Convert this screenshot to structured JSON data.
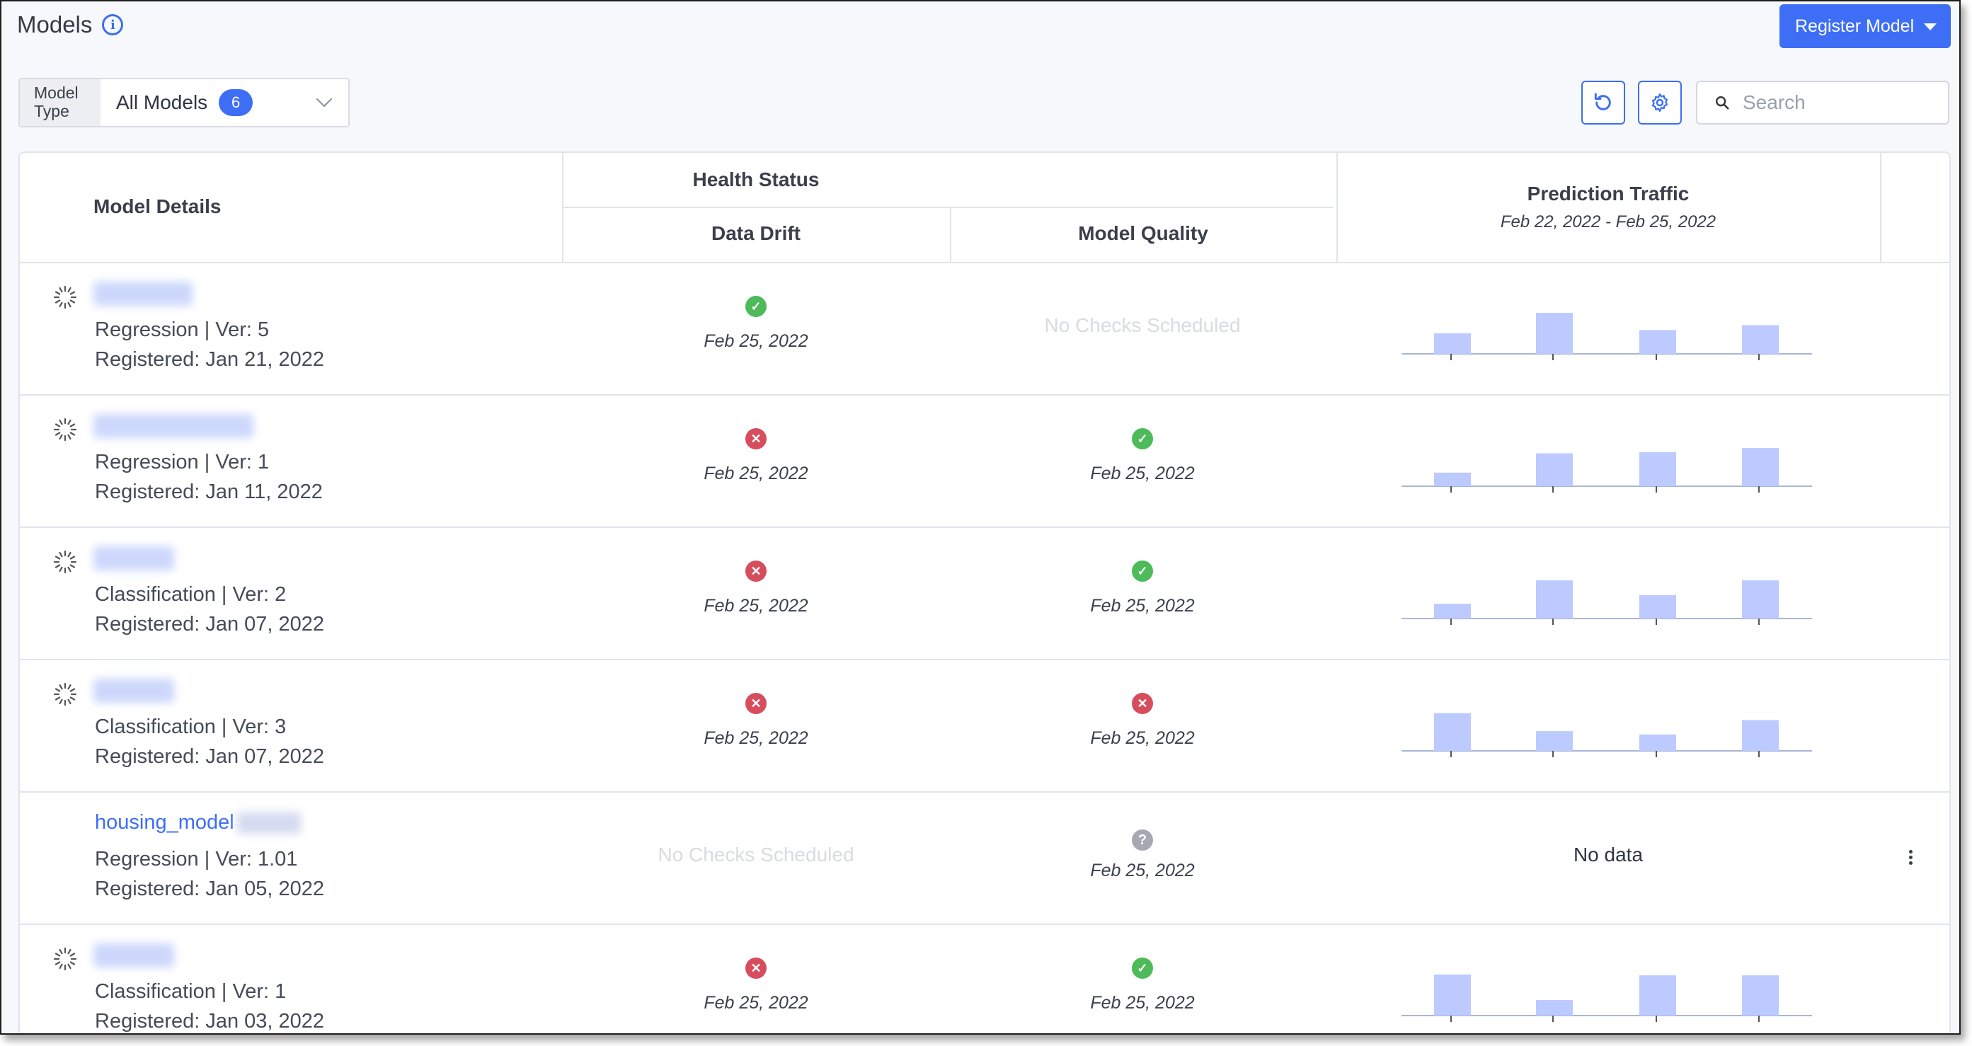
{
  "page": {
    "title": "Models",
    "register_button": "Register Model",
    "model_type": {
      "label_line1": "Model",
      "label_line2": "Type",
      "value": "All Models",
      "count": "6"
    },
    "search_placeholder": "Search"
  },
  "table": {
    "headers": {
      "model_details": "Model Details",
      "health_status": "Health Status",
      "data_drift": "Data Drift",
      "model_quality": "Model Quality",
      "prediction_traffic": "Prediction Traffic",
      "date_range": "Feb 22, 2022 - Feb 25, 2022"
    },
    "rows": [
      {
        "name_visible": false,
        "meta": "Regression | Ver: 5",
        "registered": "Registered: Jan 21, 2022",
        "drift": {
          "status": "ok",
          "date": "Feb 25, 2022"
        },
        "quality": {
          "status": "none",
          "text": "No Checks Scheduled"
        },
        "traffic": [
          0.5,
          1.0,
          0.58,
          0.7
        ]
      },
      {
        "name_visible": false,
        "meta": "Regression | Ver: 1",
        "registered": "Registered: Jan 11, 2022",
        "drift": {
          "status": "bad",
          "date": "Feb 25, 2022"
        },
        "quality": {
          "status": "ok",
          "date": "Feb 25, 2022"
        },
        "traffic": [
          0.33,
          0.8,
          0.83,
          0.93
        ]
      },
      {
        "name_visible": false,
        "meta": "Classification | Ver: 2",
        "registered": "Registered: Jan 07, 2022",
        "drift": {
          "status": "bad",
          "date": "Feb 25, 2022"
        },
        "quality": {
          "status": "ok",
          "date": "Feb 25, 2022"
        },
        "traffic": [
          0.36,
          0.93,
          0.57,
          0.93
        ]
      },
      {
        "name_visible": false,
        "meta": "Classification | Ver: 3",
        "registered": "Registered: Jan 07, 2022",
        "drift": {
          "status": "bad",
          "date": "Feb 25, 2022"
        },
        "quality": {
          "status": "bad",
          "date": "Feb 25, 2022"
        },
        "traffic": [
          0.92,
          0.48,
          0.4,
          0.75
        ]
      },
      {
        "name_visible": true,
        "name": "housing_model",
        "meta": "Regression | Ver: 1.01",
        "registered": "Registered: Jan 05, 2022",
        "drift": {
          "status": "none",
          "text": "No Checks Scheduled"
        },
        "quality": {
          "status": "unknown",
          "date": "Feb 25, 2022"
        },
        "traffic_text": "No data"
      },
      {
        "name_visible": false,
        "meta": "Classification | Ver: 1",
        "registered": "Registered: Jan 03, 2022",
        "drift": {
          "status": "bad",
          "date": "Feb 25, 2022"
        },
        "quality": {
          "status": "ok",
          "date": "Feb 25, 2022"
        },
        "traffic": [
          1.0,
          0.38,
          0.98,
          0.98
        ]
      }
    ]
  },
  "colors": {
    "accent": "#3d6ef5",
    "ok": "#4dbb59",
    "bad": "#d64e5e",
    "bar": "#bccaff"
  },
  "icons": [
    "info-icon",
    "refresh-icon",
    "gear-icon",
    "search-icon",
    "spinner-icon",
    "check-icon",
    "x-icon",
    "question-icon",
    "kebab-icon"
  ]
}
